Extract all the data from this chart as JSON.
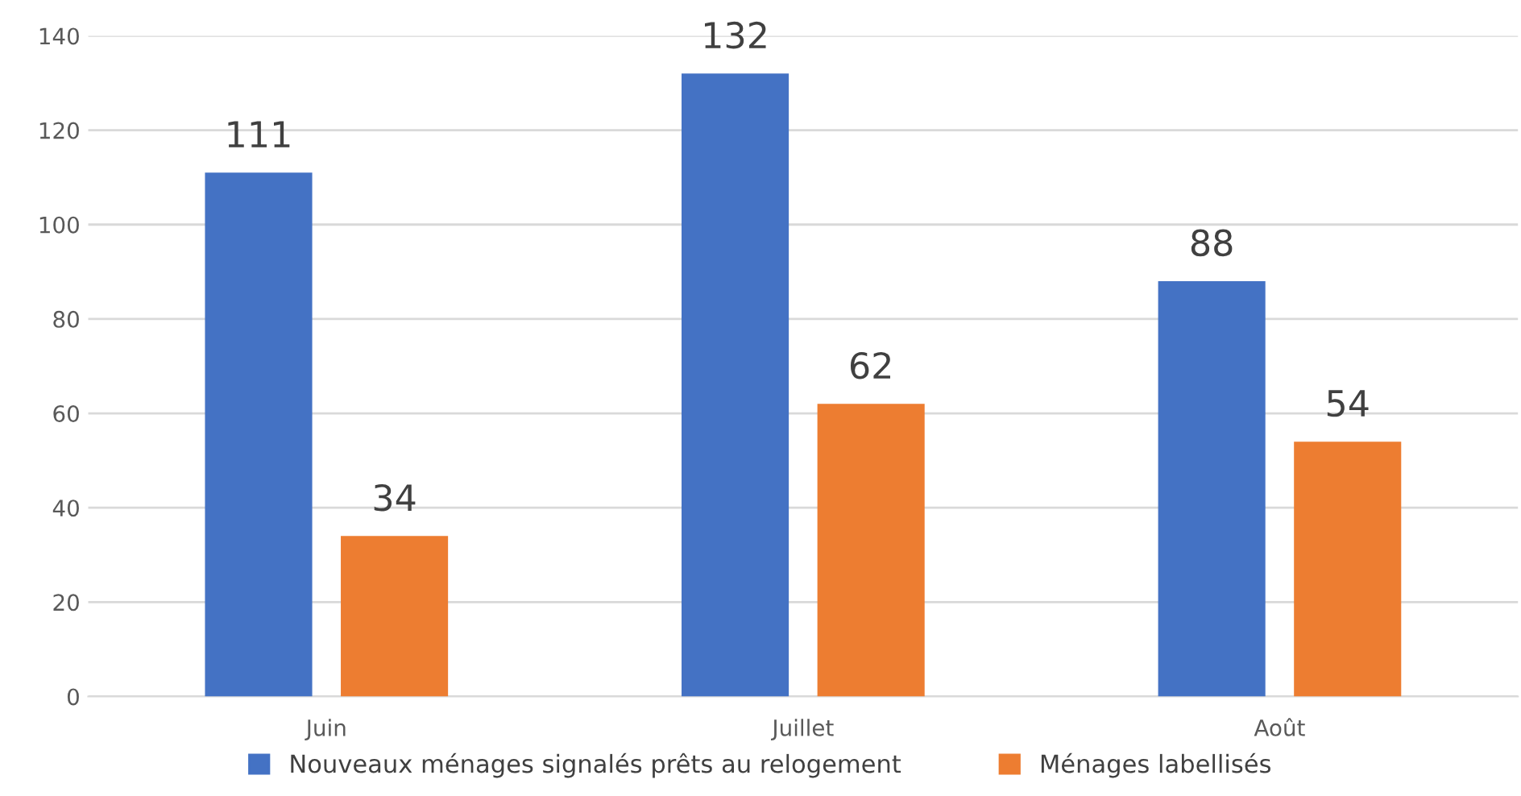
{
  "chart_data": {
    "type": "bar",
    "categories": [
      "Juin",
      "Juillet",
      "Août"
    ],
    "series": [
      {
        "name": "Nouveaux ménages signalés prêts au relogement",
        "color": "#4472c4",
        "values": [
          111,
          132,
          88
        ]
      },
      {
        "name": "Ménages labellisés",
        "color": "#ed7d31",
        "values": [
          34,
          62,
          54
        ]
      }
    ],
    "ylim": [
      0,
      140
    ],
    "yticks": [
      0,
      20,
      40,
      60,
      80,
      100,
      120,
      140
    ],
    "grid": "y",
    "legend": "bottom",
    "data_labels": true
  }
}
